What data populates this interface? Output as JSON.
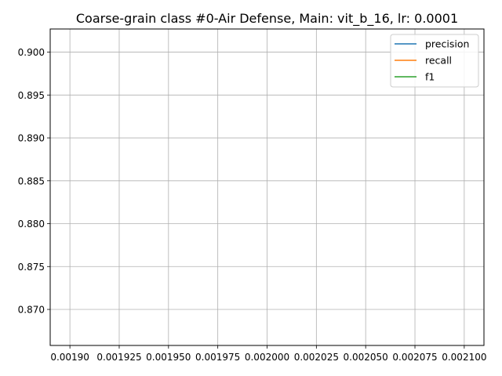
{
  "chart_data": {
    "type": "line",
    "title": "Coarse-grain class #0-Air Defense, Main: vit_b_16, lr: 0.0001",
    "xlabel": "",
    "ylabel": "",
    "xlim": [
      0.00189,
      0.00211
    ],
    "ylim": [
      0.8658,
      0.9027
    ],
    "xticks": [
      0.0019,
      0.001925,
      0.00195,
      0.001975,
      0.002,
      0.002025,
      0.00205,
      0.002075,
      0.0021
    ],
    "xtick_labels": [
      "0.00190",
      "0.001925",
      "0.001950",
      "0.001975",
      "0.002000",
      "0.002025",
      "0.002050",
      "0.002075",
      "0.002100"
    ],
    "yticks": [
      0.87,
      0.875,
      0.88,
      0.885,
      0.89,
      0.895,
      0.9
    ],
    "ytick_labels": [
      "0.870",
      "0.875",
      "0.880",
      "0.885",
      "0.890",
      "0.895",
      "0.900"
    ],
    "grid": true,
    "legend_position": "top-right",
    "series": [
      {
        "name": "precision",
        "color": "#1f77b4",
        "x": [],
        "y": []
      },
      {
        "name": "recall",
        "color": "#ff7f0e",
        "x": [],
        "y": []
      },
      {
        "name": "f1",
        "color": "#2ca02c",
        "x": [],
        "y": []
      }
    ]
  }
}
